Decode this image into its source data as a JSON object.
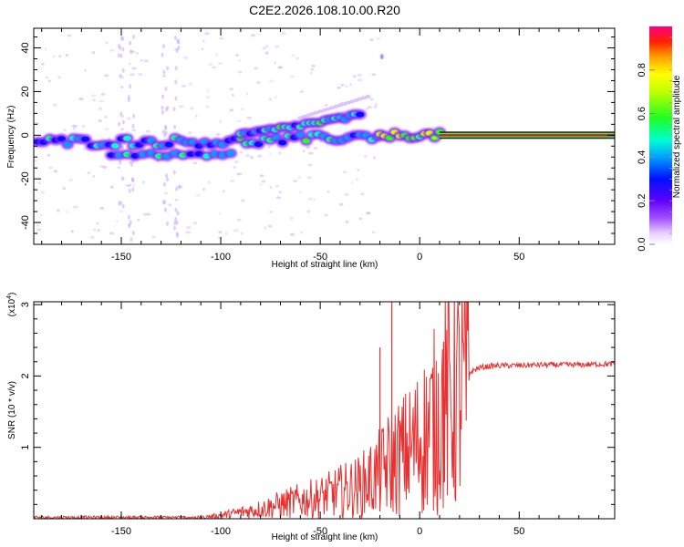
{
  "title": "C2E2.2026.108.10.00.R20",
  "colors": {
    "snr_line": "#e83030",
    "frame": "#000000",
    "beam_fill": "#e81818",
    "beam_edge": "#2a1a10"
  },
  "chart_data": [
    {
      "type": "heatmap",
      "name": "spectrogram",
      "xlabel": "Height of straight line (km)",
      "ylabel": "Frequency (Hz)",
      "xlim": [
        -194,
        98
      ],
      "ylim": [
        -50,
        49
      ],
      "xticks": [
        -150,
        -100,
        -50,
        0,
        50
      ],
      "yticks": [
        -40,
        -20,
        0,
        20,
        40
      ],
      "colorbar": {
        "label": "Normalized spectral amplitude",
        "range": [
          0,
          1
        ],
        "ticks": [
          "0.0",
          "0.2",
          "0.4",
          "0.6",
          "0.8"
        ],
        "tick_values": [
          0,
          0.2,
          0.4,
          0.6,
          0.8
        ]
      },
      "features": {
        "steady_beam": {
          "x_start": 10,
          "x_end": 98,
          "frequency_hz": 0,
          "amplitude": 0.95
        },
        "lower_band": {
          "x_start": -194,
          "x_end": -20,
          "frequency_hz": -3
        },
        "rising_streak": {
          "x_start": -90,
          "x_end": -30,
          "frequency_start_hz": 0,
          "frequency_end_hz": 9
        }
      }
    },
    {
      "type": "line",
      "name": "snr",
      "xlabel": "Height of straight line (km)",
      "ylabel": "SNR (10 * v/v)",
      "scale_label": "(x10^4)",
      "scale_base": "(x10",
      "scale_exp": "4",
      "xlim": [
        -194,
        98
      ],
      "ylim": [
        0,
        3.04
      ],
      "xticks": [
        -150,
        -100,
        -50,
        0,
        50
      ],
      "yticks": [
        1,
        2,
        3
      ],
      "series": [
        {
          "name": "SNR",
          "x": [
            -194,
            -175,
            -150,
            -125,
            -110,
            -100,
            -90,
            -80,
            -70,
            -60,
            -50,
            -40,
            -30,
            -25,
            -20,
            -15,
            -10,
            -5,
            0,
            5,
            10,
            15,
            20,
            25,
            30,
            35,
            40,
            50,
            60,
            70,
            80,
            90,
            98
          ],
          "y": [
            0.02,
            0.02,
            0.02,
            0.02,
            0.02,
            0.05,
            0.1,
            0.15,
            0.22,
            0.28,
            0.33,
            0.42,
            0.5,
            0.6,
            0.7,
            0.85,
            0.95,
            1.05,
            1.2,
            1.38,
            1.62,
            1.82,
            1.95,
            2.05,
            2.12,
            2.14,
            2.15,
            2.15,
            2.16,
            2.16,
            2.16,
            2.17,
            2.17
          ],
          "spikes": [
            {
              "x": -20,
              "y": 2.4
            },
            {
              "x": -14,
              "y": 3.04
            },
            {
              "x": 12,
              "y": 2.48
            }
          ]
        }
      ]
    }
  ]
}
